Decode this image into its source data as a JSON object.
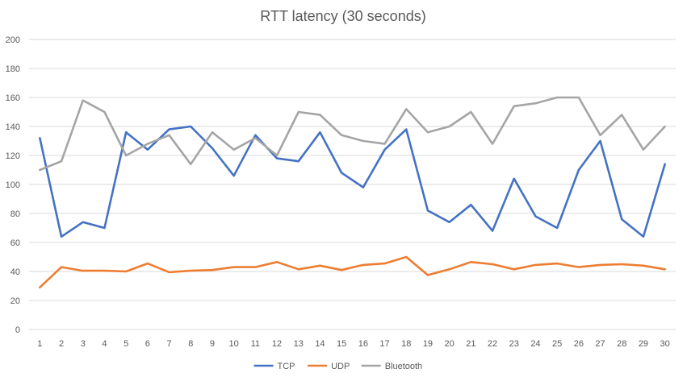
{
  "chart_data": {
    "type": "line",
    "title": "RTT latency (30 seconds)",
    "xlabel": "",
    "ylabel": "",
    "categories": [
      "1",
      "2",
      "3",
      "4",
      "5",
      "6",
      "7",
      "8",
      "9",
      "10",
      "11",
      "12",
      "13",
      "14",
      "15",
      "16",
      "17",
      "18",
      "19",
      "20",
      "21",
      "22",
      "23",
      "24",
      "25",
      "26",
      "27",
      "28",
      "29",
      "30"
    ],
    "ylim": [
      0,
      200
    ],
    "yticks": [
      0,
      20,
      40,
      60,
      80,
      100,
      120,
      140,
      160,
      180,
      200
    ],
    "grid": true,
    "legend_position": "bottom",
    "series": [
      {
        "name": "TCP",
        "color": "#4472c4",
        "values": [
          132,
          64,
          74,
          70,
          136,
          124,
          138,
          140,
          125,
          106,
          134,
          118,
          116,
          136,
          108,
          98,
          124,
          138,
          82,
          74,
          86,
          68,
          104,
          78,
          70,
          110,
          130,
          76,
          64,
          114
        ]
      },
      {
        "name": "UDP",
        "color": "#ed7d31",
        "values": [
          29,
          43,
          40.5,
          40.5,
          40,
          45.5,
          39.5,
          40.5,
          41,
          43,
          43,
          46.5,
          41.5,
          44,
          41,
          44.5,
          45.5,
          50,
          37.5,
          41.5,
          46.5,
          45,
          41.5,
          44.5,
          45.5,
          43,
          44.5,
          45,
          44,
          41.5
        ]
      },
      {
        "name": "Bluetooth",
        "color": "#a5a5a5",
        "values": [
          110,
          116,
          158,
          150,
          120,
          128,
          134,
          114,
          136,
          124,
          132,
          120,
          150,
          148,
          134,
          130,
          128,
          152,
          136,
          140,
          150,
          128,
          154,
          156,
          160,
          160,
          134,
          148,
          124,
          140
        ]
      }
    ]
  }
}
